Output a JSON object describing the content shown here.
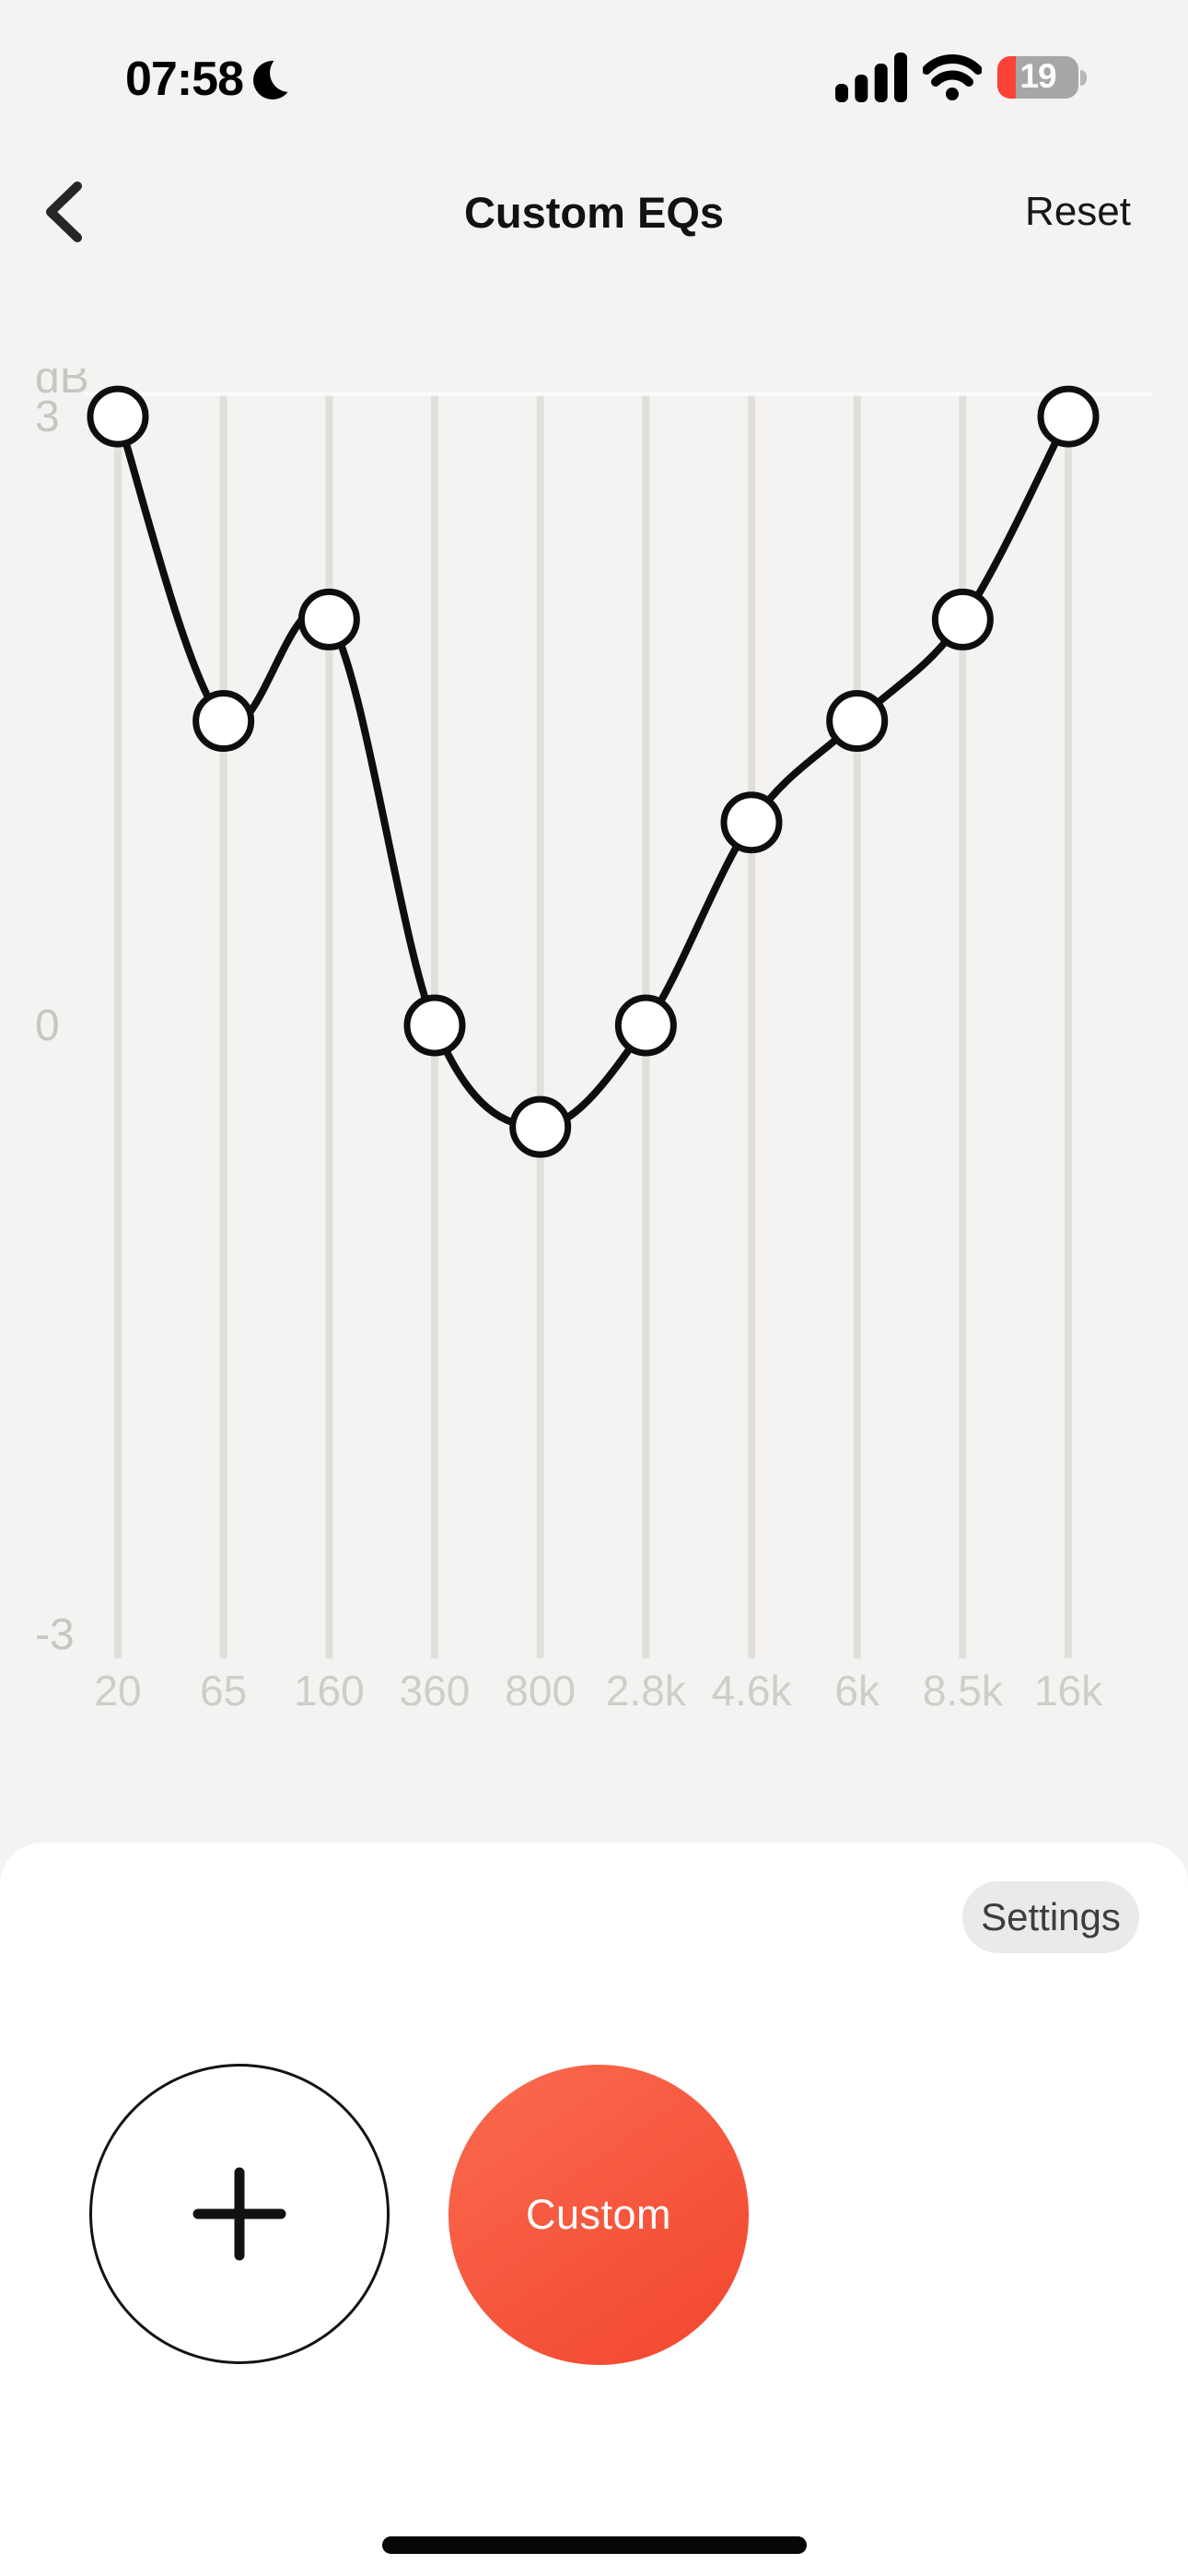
{
  "status_bar": {
    "time": "07:58",
    "focus_mode_icon": "moon-icon",
    "signal_bars": 4,
    "wifi_on": true,
    "battery_percent": "19",
    "battery_level_color": "#fb4236",
    "battery_body_color": "#a6a6a6"
  },
  "header": {
    "back_icon": "chevron-left-icon",
    "title": "Custom EQs",
    "reset_label": "Reset"
  },
  "chart_data": {
    "type": "line",
    "title": "",
    "ylabel": "dB",
    "categories": [
      "20",
      "65",
      "160",
      "360",
      "800",
      "2.8k",
      "4.6k",
      "6k",
      "8.5k",
      "16k"
    ],
    "values": [
      3,
      1.5,
      2,
      0,
      -0.5,
      0,
      1,
      1.5,
      2,
      3
    ],
    "yticks": [
      3,
      0,
      -3
    ],
    "ylim": [
      -3,
      3
    ],
    "grid": "vertical-only",
    "legend": "none",
    "point_style": "open-circle-handles",
    "line_color": "#0e0e0e",
    "point_fill": "#ffffff",
    "grid_color": "#e1dfdc",
    "axis_label_color": "#c8c6c3",
    "tick_label_color": "#cfcdca"
  },
  "bottom_sheet": {
    "settings_label": "Settings",
    "add_button_icon": "plus-icon",
    "presets": [
      {
        "name": "Custom",
        "selected": true,
        "color_start": "#fa6b4f",
        "color_end": "#f2462e"
      }
    ]
  }
}
